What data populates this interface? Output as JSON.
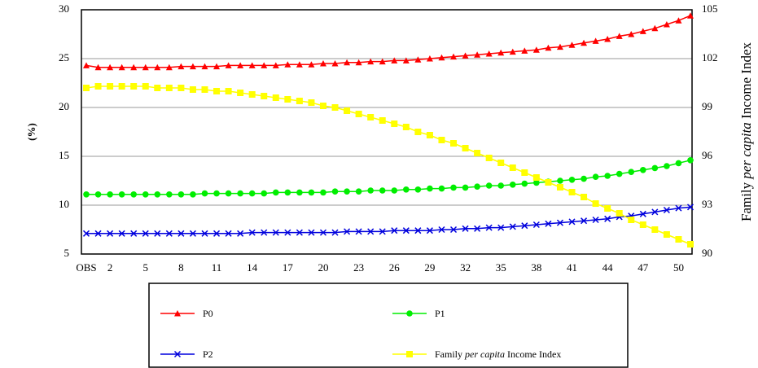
{
  "chart_data": {
    "type": "line",
    "y_label": "(%)",
    "y2_label": "Family per capita Income Index",
    "y2_label_italic": "per capita",
    "categories": [
      "OBS",
      null,
      "2",
      null,
      null,
      "5",
      null,
      null,
      "8",
      null,
      null,
      "11",
      null,
      null,
      "14",
      null,
      null,
      "17",
      null,
      null,
      "20",
      null,
      null,
      "23",
      null,
      null,
      "26",
      null,
      null,
      "29",
      null,
      null,
      "32",
      null,
      null,
      "35",
      null,
      null,
      "38",
      null,
      null,
      "41",
      null,
      null,
      "44",
      null,
      null,
      "47",
      null,
      null,
      "50",
      null
    ],
    "ylim": [
      5,
      30
    ],
    "yticks": [
      5,
      10,
      15,
      20,
      25,
      30
    ],
    "y2lim": [
      90,
      105
    ],
    "y2ticks": [
      90,
      93,
      96,
      99,
      102,
      105
    ],
    "grid": true,
    "series": [
      {
        "name": "P0",
        "color": "#ff0000",
        "marker": "triangle",
        "values": [
          24.3,
          24.1,
          24.1,
          24.1,
          24.1,
          24.1,
          24.1,
          24.1,
          24.2,
          24.2,
          24.2,
          24.2,
          24.3,
          24.3,
          24.3,
          24.3,
          24.3,
          24.4,
          24.4,
          24.4,
          24.5,
          24.5,
          24.6,
          24.6,
          24.7,
          24.7,
          24.8,
          24.8,
          24.9,
          25.0,
          25.1,
          25.2,
          25.3,
          25.4,
          25.5,
          25.6,
          25.7,
          25.8,
          25.9,
          26.1,
          26.2,
          26.4,
          26.6,
          26.8,
          27.0,
          27.3,
          27.5,
          27.8,
          28.1,
          28.5,
          28.9,
          29.4
        ]
      },
      {
        "name": "P1",
        "color": "#00ee00",
        "marker": "circle",
        "values": [
          11.1,
          11.1,
          11.1,
          11.1,
          11.1,
          11.1,
          11.1,
          11.1,
          11.1,
          11.1,
          11.2,
          11.2,
          11.2,
          11.2,
          11.2,
          11.2,
          11.3,
          11.3,
          11.3,
          11.3,
          11.3,
          11.4,
          11.4,
          11.4,
          11.5,
          11.5,
          11.5,
          11.6,
          11.6,
          11.7,
          11.7,
          11.8,
          11.8,
          11.9,
          12.0,
          12.0,
          12.1,
          12.2,
          12.3,
          12.4,
          12.5,
          12.6,
          12.7,
          12.9,
          13.0,
          13.2,
          13.4,
          13.6,
          13.8,
          14.0,
          14.3,
          14.6
        ]
      },
      {
        "name": "P2",
        "color": "#0000dd",
        "marker": "cross",
        "values": [
          7.1,
          7.1,
          7.1,
          7.1,
          7.1,
          7.1,
          7.1,
          7.1,
          7.1,
          7.1,
          7.1,
          7.1,
          7.1,
          7.1,
          7.2,
          7.2,
          7.2,
          7.2,
          7.2,
          7.2,
          7.2,
          7.2,
          7.3,
          7.3,
          7.3,
          7.3,
          7.4,
          7.4,
          7.4,
          7.4,
          7.5,
          7.5,
          7.6,
          7.6,
          7.7,
          7.7,
          7.8,
          7.9,
          8.0,
          8.1,
          8.2,
          8.3,
          8.4,
          8.5,
          8.6,
          8.8,
          8.9,
          9.1,
          9.3,
          9.5,
          9.7,
          9.8
        ]
      },
      {
        "name": "Family per capita Income Index",
        "name_italic": "per capita",
        "color": "#ffff00",
        "marker": "square",
        "axis": "y2",
        "values": [
          100.2,
          100.3,
          100.3,
          100.3,
          100.3,
          100.3,
          100.2,
          100.2,
          100.2,
          100.1,
          100.1,
          100.0,
          100.0,
          99.9,
          99.8,
          99.7,
          99.6,
          99.5,
          99.4,
          99.3,
          99.1,
          99.0,
          98.8,
          98.6,
          98.4,
          98.2,
          98.0,
          97.8,
          97.5,
          97.3,
          97.0,
          96.8,
          96.5,
          96.2,
          95.9,
          95.6,
          95.3,
          95.0,
          94.7,
          94.4,
          94.1,
          93.8,
          93.5,
          93.1,
          92.8,
          92.5,
          92.1,
          91.8,
          91.5,
          91.2,
          90.9,
          90.6
        ]
      }
    ]
  }
}
